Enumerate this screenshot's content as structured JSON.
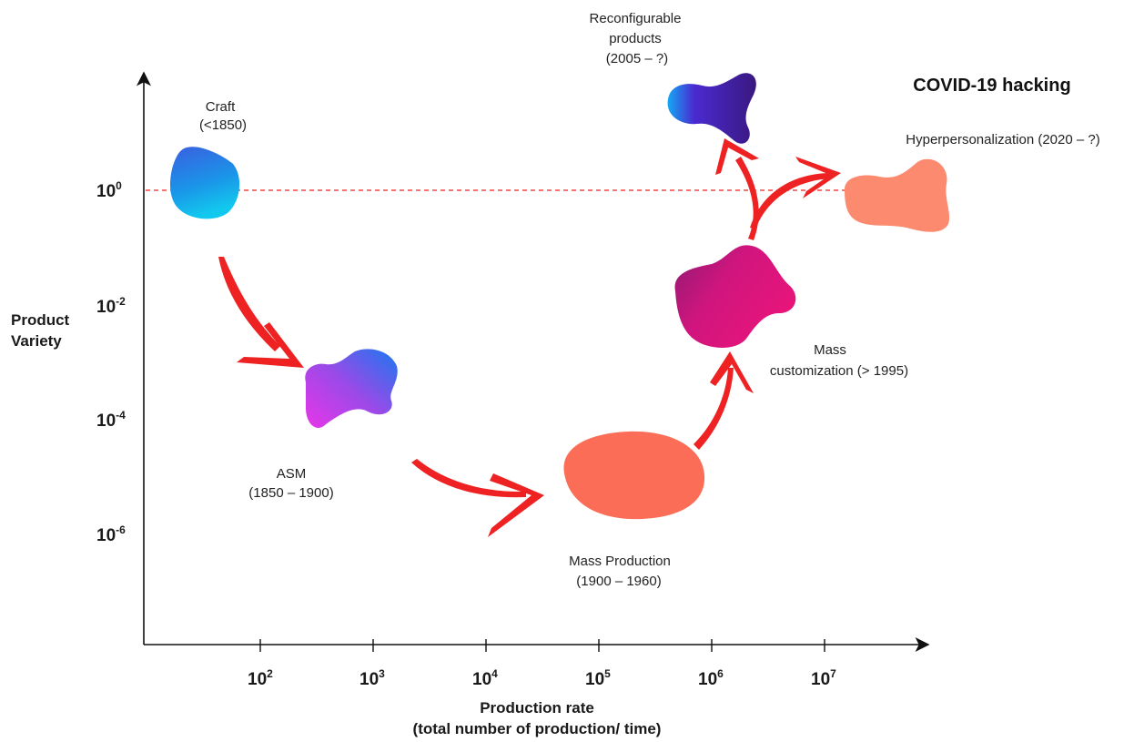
{
  "diagram": {
    "headline": "COVID-19 hacking",
    "y_axis": {
      "title_line1": "Product",
      "title_line2": "Variety"
    },
    "x_axis": {
      "title_line1": "Production rate",
      "title_line2": "(total number of production/ time)"
    },
    "y_ticks": [
      {
        "base": "10",
        "exp": "0"
      },
      {
        "base": "10",
        "exp": "-2"
      },
      {
        "base": "10",
        "exp": "-4"
      },
      {
        "base": "10",
        "exp": "-6"
      }
    ],
    "x_ticks": [
      {
        "base": "10",
        "exp": "2"
      },
      {
        "base": "10",
        "exp": "3"
      },
      {
        "base": "10",
        "exp": "4"
      },
      {
        "base": "10",
        "exp": "5"
      },
      {
        "base": "10",
        "exp": "6"
      },
      {
        "base": "10",
        "exp": "7"
      }
    ],
    "stages": {
      "craft": {
        "name": "Craft",
        "period": "(<1850)"
      },
      "asm": {
        "name": "ASM",
        "period": "(1850 – 1900)"
      },
      "mass_production": {
        "name": "Mass Production",
        "period": "(1900 – 1960)"
      },
      "mass_customization": {
        "name": "Mass",
        "period": "customization (> 1995)"
      },
      "reconfigurable": {
        "line1": "Reconfigurable",
        "line2": "products",
        "period": "(2005 – ?)"
      },
      "hyperpersonalization": {
        "name": "Hyperpersonalization  (2020 – ?)"
      }
    },
    "colors": {
      "arrow": "#ee2222",
      "reference_line": "#ee2222",
      "axis": "#111111",
      "craft": "#2a8fe0",
      "asm": "#c040e8",
      "mass_production": "#fb6d57",
      "mass_customization": "#c8157a",
      "reconfigurable": "#4a1aa0",
      "hyperpersonalization": "#fc8a6f"
    }
  }
}
